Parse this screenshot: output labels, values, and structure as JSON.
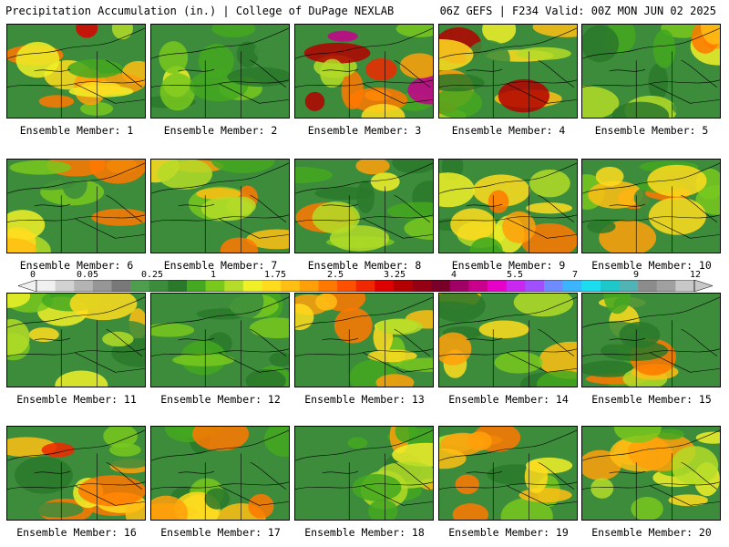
{
  "header": {
    "title": "Precipitation Accumulation (in.) | College of DuPage NEXLAB",
    "run_info": "06Z GEFS | F234 Valid: 00Z MON JUN 02 2025"
  },
  "panel_label_prefix": "Ensemble Member: ",
  "members": [
    {
      "number": "1",
      "intensity": 0.62
    },
    {
      "number": "2",
      "intensity": 0.22
    },
    {
      "number": "3",
      "intensity": 0.85
    },
    {
      "number": "4",
      "intensity": 0.72
    },
    {
      "number": "5",
      "intensity": 0.38
    },
    {
      "number": "6",
      "intensity": 0.42
    },
    {
      "number": "7",
      "intensity": 0.4
    },
    {
      "number": "8",
      "intensity": 0.3
    },
    {
      "number": "9",
      "intensity": 0.66
    },
    {
      "number": "10",
      "intensity": 0.5
    },
    {
      "number": "11",
      "intensity": 0.55
    },
    {
      "number": "12",
      "intensity": 0.12
    },
    {
      "number": "13",
      "intensity": 0.5
    },
    {
      "number": "14",
      "intensity": 0.32
    },
    {
      "number": "15",
      "intensity": 0.46
    },
    {
      "number": "16",
      "intensity": 0.62
    },
    {
      "number": "17",
      "intensity": 0.4
    },
    {
      "number": "18",
      "intensity": 0.4
    },
    {
      "number": "19",
      "intensity": 0.44
    },
    {
      "number": "20",
      "intensity": 0.44
    }
  ],
  "colorbar": {
    "tick_labels": [
      "0",
      "0.05",
      "0.25",
      "1",
      "1.75",
      "2.5",
      "3.25",
      "4",
      "5.5",
      "7",
      "9",
      "12"
    ],
    "colors": [
      "#f0f0f0",
      "#d2d2d2",
      "#b4b4b4",
      "#969696",
      "#787878",
      "#4f9d4f",
      "#3c8c3c",
      "#2a782a",
      "#44a820",
      "#78c81e",
      "#b4dc28",
      "#f0f028",
      "#ffdc1e",
      "#ffbe14",
      "#ffa00a",
      "#ff7800",
      "#ff5000",
      "#f02800",
      "#dc0000",
      "#b40000",
      "#960014",
      "#780028",
      "#a00064",
      "#c8008c",
      "#e600c8",
      "#c828f0",
      "#a050ff",
      "#6e8cff",
      "#3cb4ff",
      "#1edcf0",
      "#1ec8c8",
      "#50b4b4",
      "#8c8c8c",
      "#a0a0a0",
      "#c8c8c8"
    ]
  }
}
